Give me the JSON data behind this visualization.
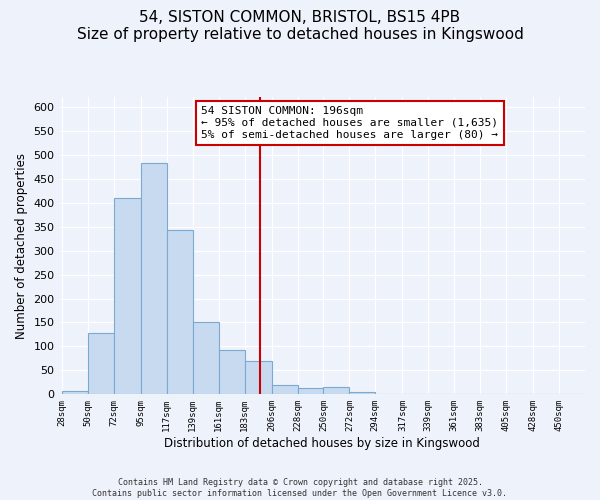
{
  "title": "54, SISTON COMMON, BRISTOL, BS15 4PB",
  "subtitle": "Size of property relative to detached houses in Kingswood",
  "xlabel": "Distribution of detached houses by size in Kingswood",
  "ylabel": "Number of detached properties",
  "bin_edges": [
    28,
    50,
    72,
    95,
    117,
    139,
    161,
    183,
    206,
    228,
    250,
    272,
    294,
    317,
    339,
    361,
    383,
    405,
    428,
    450,
    472
  ],
  "bar_heights": [
    8,
    128,
    410,
    483,
    344,
    150,
    92,
    70,
    20,
    14,
    16,
    5,
    1,
    0,
    0,
    0,
    0,
    0,
    0,
    1
  ],
  "bar_color": "#c8daf0",
  "bar_edgecolor": "#7aaad0",
  "vline_x": 196,
  "vline_color": "#cc0000",
  "annotation_title": "54 SISTON COMMON: 196sqm",
  "annotation_line1": "← 95% of detached houses are smaller (1,635)",
  "annotation_line2": "5% of semi-detached houses are larger (80) →",
  "ylim": [
    0,
    620
  ],
  "yticks": [
    0,
    50,
    100,
    150,
    200,
    250,
    300,
    350,
    400,
    450,
    500,
    550,
    600
  ],
  "footer1": "Contains HM Land Registry data © Crown copyright and database right 2025.",
  "footer2": "Contains public sector information licensed under the Open Government Licence v3.0.",
  "background_color": "#eef2fb",
  "grid_color": "#ffffff",
  "title_fontsize": 11,
  "subtitle_fontsize": 9.5
}
